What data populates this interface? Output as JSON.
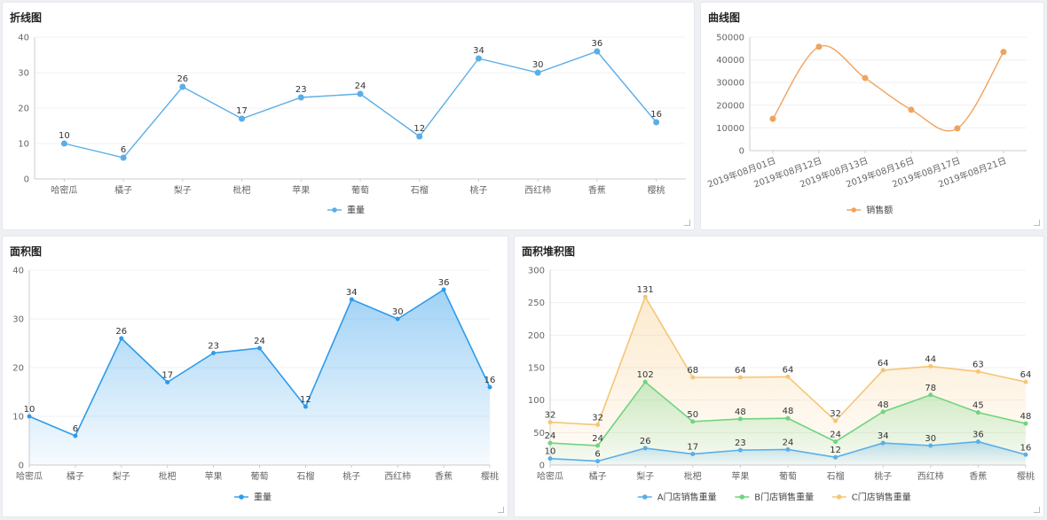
{
  "panels": {
    "line": {
      "title": "折线图"
    },
    "curve": {
      "title": "曲线图"
    },
    "area": {
      "title": "面积图"
    },
    "stack": {
      "title": "面积堆积图"
    }
  },
  "colors": {
    "line": "#5aaee8",
    "curve": "#f0a35e",
    "area": "#2d9bea",
    "stackA": "#5aaee8",
    "stackB": "#6fd47f",
    "stackC": "#f6c575"
  },
  "chart_data": [
    {
      "id": "line",
      "type": "line",
      "title": "折线图",
      "categories": [
        "哈密瓜",
        "橘子",
        "梨子",
        "枇杷",
        "苹果",
        "葡萄",
        "石榴",
        "桃子",
        "西红柿",
        "香蕉",
        "樱桃"
      ],
      "series": [
        {
          "name": "重量",
          "values": [
            10,
            6,
            26,
            17,
            23,
            24,
            12,
            34,
            30,
            36,
            16
          ]
        }
      ],
      "ylim": [
        0,
        40
      ],
      "yticks": [
        0,
        10,
        20,
        30,
        40
      ],
      "legend": "bottom-center",
      "grid": true
    },
    {
      "id": "curve",
      "type": "line",
      "title": "曲线图",
      "smooth": true,
      "categories": [
        "2019年08月01日",
        "2019年08月12日",
        "2019年08月13日",
        "2019年08月16日",
        "2019年08月17日",
        "2019年08月21日"
      ],
      "series": [
        {
          "name": "销售额",
          "values": [
            14000,
            45800,
            32000,
            18000,
            9800,
            43500
          ]
        }
      ],
      "ylim": [
        0,
        50000
      ],
      "yticks": [
        0,
        10000,
        20000,
        30000,
        40000,
        50000
      ],
      "legend": "bottom-center",
      "grid": true
    },
    {
      "id": "area",
      "type": "area",
      "title": "面积图",
      "categories": [
        "哈密瓜",
        "橘子",
        "梨子",
        "枇杷",
        "苹果",
        "葡萄",
        "石榴",
        "桃子",
        "西红柿",
        "香蕉",
        "樱桃"
      ],
      "series": [
        {
          "name": "重量",
          "values": [
            10,
            6,
            26,
            17,
            23,
            24,
            12,
            34,
            30,
            36,
            16
          ]
        }
      ],
      "ylim": [
        0,
        40
      ],
      "yticks": [
        0,
        10,
        20,
        30,
        40
      ],
      "legend": "bottom-center",
      "grid": true
    },
    {
      "id": "stack",
      "type": "area",
      "stacked": true,
      "title": "面积堆积图",
      "categories": [
        "哈密瓜",
        "橘子",
        "梨子",
        "枇杷",
        "苹果",
        "葡萄",
        "石榴",
        "桃子",
        "西红柿",
        "香蕉",
        "樱桃"
      ],
      "series": [
        {
          "name": "A门店销售重量",
          "values": [
            10,
            6,
            26,
            17,
            23,
            24,
            12,
            34,
            30,
            36,
            16
          ]
        },
        {
          "name": "B门店销售重量",
          "values": [
            24,
            24,
            102,
            50,
            48,
            48,
            24,
            48,
            78,
            45,
            48
          ]
        },
        {
          "name": "C门店销售重量",
          "values": [
            32,
            32,
            131,
            68,
            64,
            64,
            32,
            64,
            44,
            63,
            64
          ]
        }
      ],
      "ylim": [
        0,
        300
      ],
      "yticks": [
        0,
        50,
        100,
        150,
        200,
        250,
        300
      ],
      "legend": "bottom-center",
      "grid": true
    }
  ]
}
